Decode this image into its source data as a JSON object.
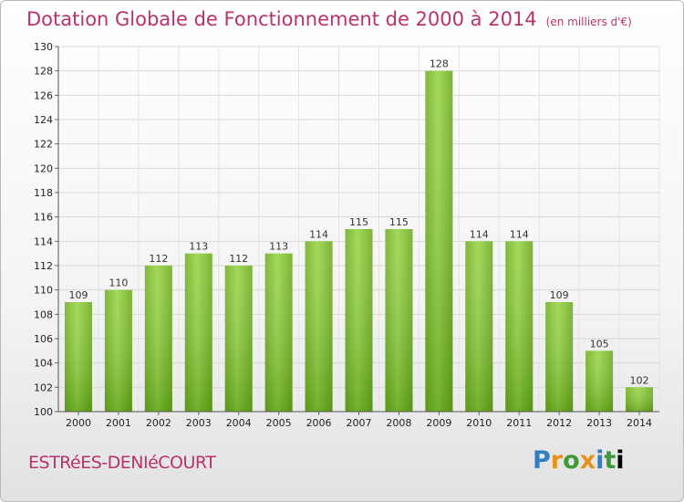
{
  "header": {
    "title": "Dotation Globale de Fonctionnement de 2000 à 2014",
    "unit": "(en milliers d'€)"
  },
  "footer": {
    "place": "ESTRéES-DENIéCOURT",
    "logo_letters": [
      "P",
      "r",
      "o",
      "x",
      "i",
      "t",
      "i"
    ]
  },
  "colors": {
    "title": "#b8326e",
    "bar_top": "#8fcf3c",
    "bar_bottom": "#5a9e16"
  },
  "chart_data": {
    "type": "bar",
    "title": "Dotation Globale de Fonctionnement de 2000 à 2014",
    "subtitle": "(en milliers d'€)",
    "categories": [
      "2000",
      "2001",
      "2002",
      "2003",
      "2004",
      "2005",
      "2006",
      "2007",
      "2008",
      "2009",
      "2010",
      "2011",
      "2012",
      "2013",
      "2014"
    ],
    "values": [
      109,
      110,
      112,
      113,
      112,
      113,
      114,
      115,
      115,
      128,
      114,
      114,
      109,
      105,
      102
    ],
    "ylim": [
      100,
      130
    ],
    "yticks": [
      100,
      102,
      104,
      106,
      108,
      110,
      112,
      114,
      116,
      118,
      120,
      122,
      124,
      126,
      128,
      130
    ],
    "grid": true
  }
}
